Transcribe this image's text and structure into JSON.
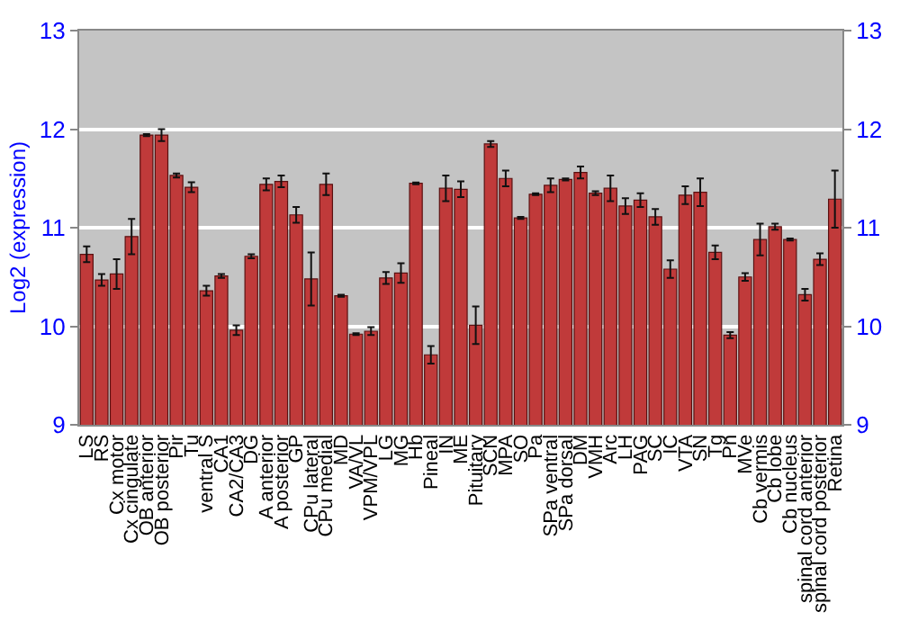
{
  "chart_data": {
    "type": "bar",
    "ylabel": "Log2 (expression)",
    "categories": [
      "LS",
      "RS",
      "Cx motor",
      "Cx cingulate",
      "OB anterior",
      "OB posterior",
      "Pir",
      "Tu",
      "ventral S",
      "CA1",
      "CA2/CA3",
      "DG",
      "A anterior",
      "A posterior",
      "GP",
      "CPu lateral",
      "CPu medial",
      "MD",
      "VA/VL",
      "VPM/VPL",
      "LG",
      "MG",
      "Hb",
      "Pineal",
      "IN",
      "ME",
      "Pituitary",
      "SCN",
      "MPA",
      "SO",
      "Pa",
      "SPa ventral",
      "SPa dorsal",
      "DM",
      "VMH",
      "Arc",
      "LH",
      "PAG",
      "SC",
      "IC",
      "VTA",
      "SN",
      "Tg",
      "Pn",
      "MVe",
      "Cb vermis",
      "Cb lobe",
      "Cb nucleus",
      "spinal cord anterior",
      "spinal cord posterior",
      "Retina"
    ],
    "values": [
      10.73,
      10.47,
      10.53,
      10.91,
      11.94,
      11.94,
      11.53,
      11.41,
      10.36,
      10.51,
      9.96,
      10.71,
      11.44,
      11.47,
      11.13,
      10.48,
      11.44,
      10.31,
      9.92,
      9.95,
      10.49,
      10.54,
      11.45,
      9.71,
      11.4,
      11.39,
      10.01,
      11.85,
      11.5,
      11.1,
      11.34,
      11.43,
      11.49,
      11.56,
      11.35,
      11.4,
      11.22,
      11.28,
      11.11,
      10.58,
      11.33,
      11.36,
      10.75,
      9.91,
      10.5,
      10.88,
      11.01,
      10.88,
      10.32,
      10.68,
      11.29
    ],
    "errors": [
      0.08,
      0.06,
      0.15,
      0.18,
      0.01,
      0.06,
      0.02,
      0.05,
      0.05,
      0.02,
      0.05,
      0.02,
      0.06,
      0.06,
      0.08,
      0.27,
      0.11,
      0.01,
      0.01,
      0.04,
      0.06,
      0.1,
      0.01,
      0.09,
      0.13,
      0.08,
      0.19,
      0.03,
      0.08,
      0.01,
      0.01,
      0.07,
      0.01,
      0.06,
      0.02,
      0.13,
      0.08,
      0.07,
      0.08,
      0.09,
      0.09,
      0.14,
      0.07,
      0.03,
      0.04,
      0.16,
      0.03,
      0.01,
      0.06,
      0.06,
      0.29
    ],
    "color": "#c03a3a",
    "ylim": [
      9,
      13
    ],
    "yticks": [
      9,
      10,
      11,
      12,
      13
    ],
    "y2lim": [
      9,
      13
    ],
    "y2ticks": [
      9,
      10,
      11,
      12,
      13
    ],
    "grid": "y"
  }
}
